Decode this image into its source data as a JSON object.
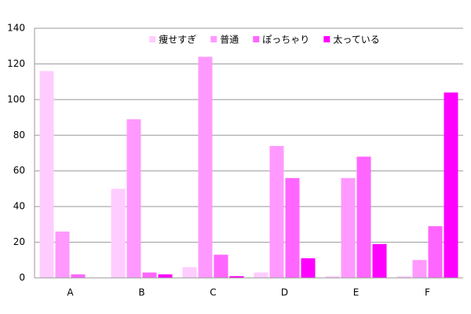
{
  "chart_data": {
    "type": "bar",
    "categories": [
      "A",
      "B",
      "C",
      "D",
      "E",
      "F"
    ],
    "series": [
      {
        "name": "痩せすぎ",
        "color": "#ffccff",
        "values": [
          116,
          50,
          6,
          3,
          1,
          1
        ]
      },
      {
        "name": "普通",
        "color": "#ff99ff",
        "values": [
          26,
          89,
          124,
          74,
          56,
          10
        ]
      },
      {
        "name": "ぽっちゃり",
        "color": "#ff66ff",
        "values": [
          2,
          3,
          13,
          56,
          68,
          29
        ]
      },
      {
        "name": "太っている",
        "color": "#ff00ff",
        "values": [
          0,
          2,
          1,
          11,
          19,
          104
        ]
      }
    ],
    "ylim": [
      0,
      140
    ],
    "yticks": [
      0,
      20,
      40,
      60,
      80,
      100,
      120,
      140
    ],
    "grid": true,
    "legend": "top"
  }
}
